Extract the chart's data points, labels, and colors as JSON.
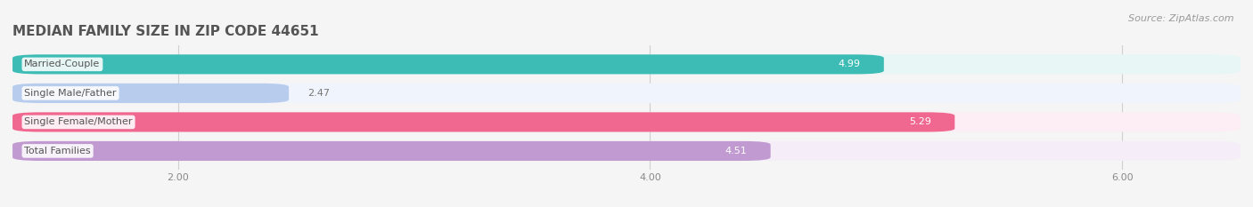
{
  "title": "MEDIAN FAMILY SIZE IN ZIP CODE 44651",
  "source": "Source: ZipAtlas.com",
  "categories": [
    "Married-Couple",
    "Single Male/Father",
    "Single Female/Mother",
    "Total Families"
  ],
  "values": [
    4.99,
    2.47,
    5.29,
    4.51
  ],
  "bar_colors": [
    "#3cbcb5",
    "#b8ccee",
    "#f06890",
    "#c09ad0"
  ],
  "bar_bg_colors": [
    "#e8f6f6",
    "#f0f4fc",
    "#fceef4",
    "#f5eef8"
  ],
  "xmin": 1.3,
  "xmax": 6.5,
  "xticks": [
    2.0,
    4.0,
    6.0
  ],
  "xtick_labels": [
    "2.00",
    "4.00",
    "6.00"
  ],
  "label_color": "#555555",
  "value_color_inside": "#ffffff",
  "value_color_outside": "#777777",
  "background_color": "#f5f5f5",
  "title_color": "#555555",
  "title_fontsize": 11,
  "label_fontsize": 8,
  "value_fontsize": 8,
  "source_fontsize": 8,
  "tick_fontsize": 8
}
